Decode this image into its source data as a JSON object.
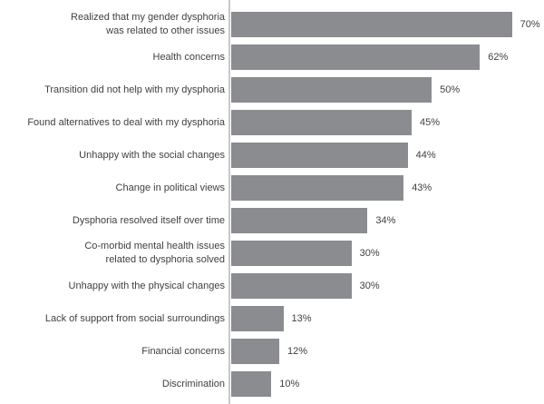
{
  "chart_data": {
    "type": "bar",
    "orientation": "horizontal",
    "categories": [
      "Realized that my gender dysphoria\nwas related to other issues",
      "Health concerns",
      "Transition did not help with my dysphoria",
      "Found alternatives to deal with my dysphoria",
      "Unhappy with the social changes",
      "Change in political views",
      "Dysphoria resolved itself over time",
      "Co-morbid mental health issues\nrelated to dysphoria solved",
      "Unhappy with the physical changes",
      "Lack of support from social surroundings",
      "Financial concerns",
      "Discrimination"
    ],
    "values": [
      70,
      62,
      50,
      45,
      44,
      43,
      34,
      30,
      30,
      13,
      12,
      10
    ],
    "value_labels": [
      "70%",
      "62%",
      "50%",
      "45%",
      "44%",
      "43%",
      "34%",
      "30%",
      "30%",
      "13%",
      "12%",
      "10%"
    ],
    "xlim": [
      0,
      78
    ],
    "grid": false,
    "legend": "none",
    "bar_color": "#8a8c8f",
    "axis_line_color": "#c7c8ca",
    "text_color": "#404040",
    "background_color": "#ffffff"
  }
}
